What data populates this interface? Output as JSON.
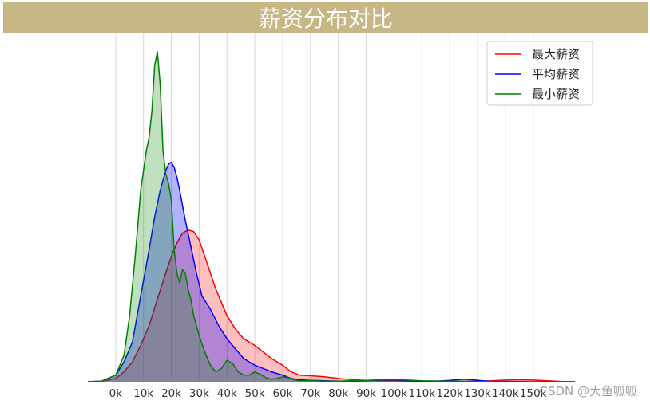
{
  "chart_data": {
    "type": "area",
    "title": "薪资分布对比",
    "xlabel": "",
    "ylabel": "",
    "x_tick_labels": [
      "0k",
      "10k",
      "20k",
      "30k",
      "40k",
      "50k",
      "60k",
      "70k",
      "80k",
      "90k",
      "100k",
      "110k",
      "120k",
      "130k",
      "140k",
      "150k"
    ],
    "x_ticks": [
      0,
      10,
      20,
      30,
      40,
      50,
      60,
      70,
      80,
      90,
      100,
      110,
      120,
      130,
      140,
      150
    ],
    "xlim": [
      -10,
      165
    ],
    "ylim": [
      0,
      1.0
    ],
    "grid": "vertical",
    "legend_position": "top-right",
    "series": [
      {
        "name": "最大薪资",
        "color": "#ff0000",
        "fill": "rgba(255,0,0,0.25)",
        "x": [
          -10,
          -5,
          0,
          3,
          6,
          9,
          12,
          15,
          18,
          20,
          22,
          24,
          26,
          28,
          30,
          32,
          34,
          36,
          38,
          40,
          43,
          46,
          50,
          53,
          56,
          60,
          63,
          66,
          70,
          75,
          80,
          85,
          90,
          95,
          100,
          105,
          110,
          115,
          120,
          125,
          130,
          135,
          140,
          145,
          150,
          155,
          160,
          165
        ],
        "y": [
          0,
          0.002,
          0.01,
          0.03,
          0.06,
          0.11,
          0.17,
          0.25,
          0.33,
          0.38,
          0.42,
          0.45,
          0.46,
          0.455,
          0.43,
          0.38,
          0.33,
          0.28,
          0.24,
          0.2,
          0.16,
          0.13,
          0.11,
          0.09,
          0.07,
          0.05,
          0.03,
          0.02,
          0.018,
          0.015,
          0.01,
          0.006,
          0.004,
          0.003,
          0.003,
          0.002,
          0.002,
          0.001,
          0.001,
          0.001,
          0.002,
          0.003,
          0.005,
          0.006,
          0.005,
          0.003,
          0.001,
          0
        ]
      },
      {
        "name": "平均薪资",
        "color": "#0000ff",
        "fill": "rgba(0,0,255,0.3)",
        "x": [
          -10,
          -5,
          0,
          3,
          6,
          9,
          12,
          14,
          16,
          18,
          19,
          20,
          21,
          22,
          23,
          25,
          27,
          29,
          31,
          34,
          37,
          40,
          43,
          46,
          50,
          53,
          56,
          60,
          63,
          66,
          70,
          75,
          80,
          85,
          90,
          95,
          100,
          105,
          110,
          115,
          120,
          125,
          128,
          132,
          135,
          140,
          150,
          165
        ],
        "y": [
          0,
          0.002,
          0.02,
          0.06,
          0.12,
          0.26,
          0.4,
          0.5,
          0.58,
          0.64,
          0.66,
          0.665,
          0.65,
          0.62,
          0.58,
          0.49,
          0.41,
          0.33,
          0.26,
          0.22,
          0.17,
          0.13,
          0.1,
          0.07,
          0.05,
          0.04,
          0.03,
          0.02,
          0.01,
          0.006,
          0.004,
          0.003,
          0.002,
          0.002,
          0.003,
          0.005,
          0.006,
          0.003,
          0.002,
          0.002,
          0.004,
          0.008,
          0.006,
          0.003,
          0.001,
          0.001,
          0,
          0
        ]
      },
      {
        "name": "最小薪资",
        "color": "#008000",
        "fill": "rgba(0,128,0,0.25)",
        "x": [
          -10,
          -5,
          0,
          3,
          5,
          7,
          9,
          11,
          12,
          13,
          14,
          15,
          16,
          17,
          18,
          19,
          20,
          21,
          22,
          23,
          24,
          25,
          26,
          27,
          28,
          29,
          30,
          32,
          34,
          36,
          38,
          40,
          42,
          44,
          46,
          48,
          50,
          52,
          54,
          56,
          58,
          60,
          62,
          64,
          66,
          70,
          75,
          80,
          85,
          90,
          95,
          100,
          105,
          110,
          120,
          130,
          140,
          165
        ],
        "y": [
          0,
          0.002,
          0.02,
          0.08,
          0.2,
          0.38,
          0.58,
          0.7,
          0.74,
          0.82,
          0.96,
          1.0,
          0.9,
          0.7,
          0.63,
          0.6,
          0.55,
          0.4,
          0.33,
          0.3,
          0.34,
          0.33,
          0.28,
          0.25,
          0.2,
          0.17,
          0.14,
          0.09,
          0.05,
          0.03,
          0.04,
          0.065,
          0.055,
          0.03,
          0.02,
          0.02,
          0.03,
          0.022,
          0.012,
          0.008,
          0.01,
          0.015,
          0.012,
          0.006,
          0.003,
          0.003,
          0.002,
          0.002,
          0.003,
          0.004,
          0.006,
          0.008,
          0.005,
          0.003,
          0.002,
          0.001,
          0,
          0
        ]
      }
    ]
  },
  "watermark": "CSDN @大鱼呱呱"
}
